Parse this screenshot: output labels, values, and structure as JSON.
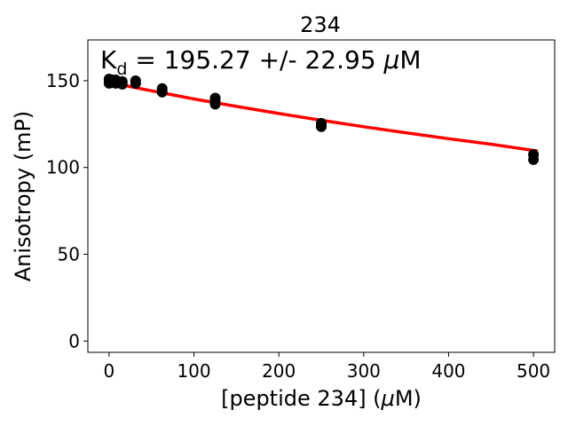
{
  "chart_data": {
    "type": "scatter",
    "title": "234",
    "xlabel_prefix": "[peptide 234] (",
    "xlabel_mu": "μ",
    "xlabel_suffix": "M)",
    "ylabel": "Anisotropy (mP)",
    "annotation": {
      "k": "K",
      "sub": "d",
      "text": " = 195.27 +/- 22.95 ",
      "mu": "μ",
      "unit": "M"
    },
    "xlim": [
      -25,
      525
    ],
    "ylim": [
      -6.5,
      173.5
    ],
    "xticks": [
      0,
      100,
      200,
      300,
      400,
      500
    ],
    "yticks": [
      0,
      50,
      100,
      150
    ],
    "colors": {
      "points": "#000000",
      "fit": "#ff0000"
    },
    "series": [
      {
        "type": "scatter",
        "x": [
          0,
          0,
          0,
          3.9,
          3.9,
          7.8,
          7.8,
          15.6,
          15.6,
          31.25,
          31.25,
          62.5,
          62.5,
          62.5,
          125,
          125,
          125,
          250,
          250,
          250,
          500,
          500
        ],
        "y": [
          151,
          149.5,
          148.5,
          150.5,
          149,
          150.5,
          148.5,
          149.5,
          148,
          150,
          148.5,
          145.5,
          144,
          143.5,
          140,
          138,
          136.5,
          125.5,
          124.5,
          123.5,
          107.5,
          104.5
        ]
      },
      {
        "type": "line",
        "x": [
          0,
          50,
          100,
          150,
          200,
          250,
          300,
          350,
          400,
          450,
          505
        ],
        "y": [
          149,
          144.2,
          139.5,
          135.2,
          131.1,
          127.2,
          123.5,
          120,
          116.6,
          113.4,
          109.5
        ]
      }
    ]
  }
}
